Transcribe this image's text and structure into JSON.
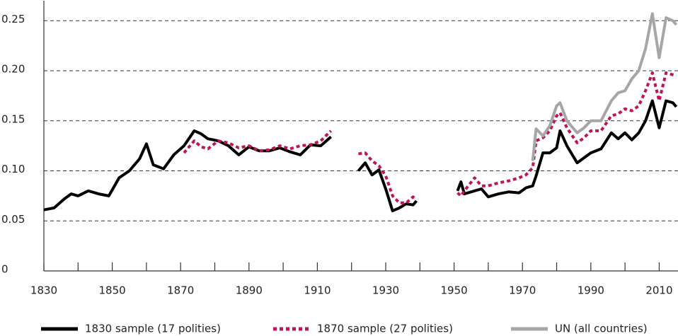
{
  "chart_data": {
    "type": "line",
    "x": [
      1830,
      1833,
      1836,
      1838,
      1840,
      1843,
      1846,
      1849,
      1852,
      1855,
      1858,
      1860,
      1862,
      1865,
      1868,
      1871,
      1874,
      1876,
      1878,
      1881,
      1884,
      1887,
      1890,
      1893,
      1896,
      1899,
      1902,
      1905,
      1908,
      1911,
      1914,
      1918,
      1922,
      1924,
      1926,
      1928,
      1930,
      1932,
      1934,
      1936,
      1938,
      1939,
      1945,
      1951,
      1952,
      1953,
      1956,
      1958,
      1960,
      1963,
      1966,
      1969,
      1971,
      1973,
      1974,
      1976,
      1978,
      1980,
      1981,
      1983,
      1986,
      1988,
      1990,
      1993,
      1996,
      1998,
      2000,
      2002,
      2004,
      2006,
      2008,
      2010,
      2012,
      2014,
      2015
    ],
    "series": [
      {
        "name": "1830 sample (17 polities)",
        "color": "#000000",
        "style": "solid",
        "values": [
          0.061,
          0.063,
          0.072,
          0.077,
          0.075,
          0.08,
          0.077,
          0.075,
          0.093,
          0.1,
          0.112,
          0.127,
          0.106,
          0.102,
          0.116,
          0.125,
          0.14,
          0.137,
          0.132,
          0.13,
          0.125,
          0.116,
          0.124,
          0.12,
          0.12,
          0.123,
          0.119,
          0.116,
          0.126,
          0.125,
          0.134,
          null,
          0.1,
          0.108,
          0.096,
          0.101,
          0.082,
          0.06,
          0.063,
          0.067,
          0.066,
          0.07,
          null,
          0.08,
          0.089,
          0.077,
          0.08,
          0.082,
          0.074,
          0.077,
          0.079,
          0.078,
          0.083,
          0.085,
          0.095,
          0.118,
          0.118,
          0.123,
          0.14,
          0.125,
          0.108,
          0.113,
          0.118,
          0.122,
          0.138,
          0.132,
          0.138,
          0.131,
          0.138,
          0.15,
          0.17,
          0.143,
          0.17,
          0.168,
          0.164
        ]
      },
      {
        "name": "1870 sample (27 polities)",
        "color": "#c0145a",
        "style": "dotted",
        "values": [
          null,
          null,
          null,
          null,
          null,
          null,
          null,
          null,
          null,
          null,
          null,
          null,
          null,
          null,
          null,
          0.118,
          0.13,
          0.124,
          0.122,
          0.13,
          0.128,
          0.123,
          0.125,
          0.12,
          0.121,
          0.125,
          0.122,
          0.125,
          0.126,
          0.13,
          0.14,
          null,
          0.117,
          0.118,
          0.11,
          0.105,
          0.095,
          0.075,
          0.068,
          0.068,
          0.074,
          0.072,
          null,
          0.078,
          0.075,
          0.08,
          0.093,
          0.085,
          0.085,
          0.088,
          0.09,
          0.093,
          0.096,
          0.103,
          0.13,
          0.133,
          0.14,
          0.155,
          0.158,
          0.143,
          0.128,
          0.133,
          0.14,
          0.14,
          0.155,
          0.157,
          0.162,
          0.16,
          0.165,
          0.18,
          0.198,
          0.17,
          0.198,
          0.196,
          0.195
        ]
      },
      {
        "name": "UN (all countries)",
        "color": "#a6a6a6",
        "style": "solid",
        "values": [
          null,
          null,
          null,
          null,
          null,
          null,
          null,
          null,
          null,
          null,
          null,
          null,
          null,
          null,
          null,
          null,
          null,
          null,
          null,
          null,
          null,
          null,
          null,
          null,
          null,
          null,
          null,
          null,
          null,
          null,
          null,
          null,
          null,
          null,
          null,
          null,
          null,
          null,
          null,
          null,
          null,
          null,
          null,
          null,
          null,
          null,
          null,
          null,
          null,
          null,
          null,
          null,
          null,
          0.11,
          0.142,
          0.135,
          0.145,
          0.165,
          0.168,
          0.15,
          0.138,
          0.143,
          0.15,
          0.15,
          0.17,
          0.178,
          0.18,
          0.192,
          0.2,
          0.222,
          0.257,
          0.213,
          0.253,
          0.25,
          0.246
        ]
      }
    ],
    "xlim": [
      1830,
      2015.5
    ],
    "xticks": [
      1830,
      1850,
      1870,
      1890,
      1910,
      1930,
      1950,
      1970,
      1990,
      2010
    ],
    "xminorticks": [
      1840,
      1860,
      1880,
      1900,
      1920,
      1940,
      1960,
      1980,
      2000
    ],
    "ylim": [
      0,
      0.27
    ],
    "yticks": [
      0,
      0.05,
      {
        "value": 0.1,
        "label": "0.10"
      },
      0.15,
      {
        "value": 0.2,
        "label": "0.20"
      },
      0.25
    ],
    "grid": true,
    "legend": "bottom"
  }
}
